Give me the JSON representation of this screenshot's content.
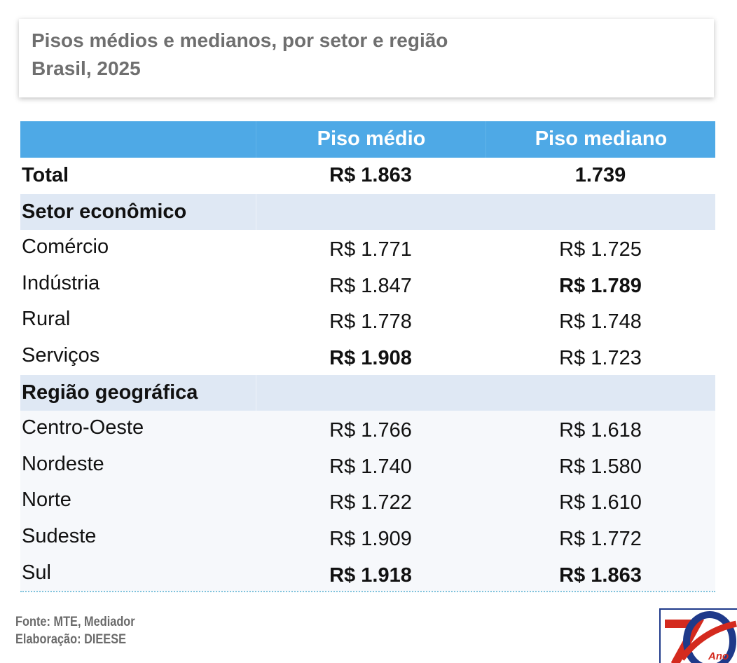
{
  "title": {
    "line1": "Pisos médios e medianos, por setor e região",
    "line2": "Brasil, 2025"
  },
  "chart_data": {
    "type": "table",
    "columns": [
      "",
      "Piso médio",
      "Piso mediano"
    ],
    "rows": [
      {
        "kind": "total",
        "label": "Total",
        "medio": "R$ 1.863",
        "mediano": "1.739",
        "medio_bold": true,
        "mediano_bold": true
      },
      {
        "kind": "section",
        "label": "Setor econômico",
        "medio": "",
        "mediano": ""
      },
      {
        "kind": "data",
        "label": "Comércio",
        "medio": "R$ 1.771",
        "mediano": "R$ 1.725",
        "medio_bold": false,
        "mediano_bold": false
      },
      {
        "kind": "data",
        "label": "Indústria",
        "medio": "R$ 1.847",
        "mediano": "R$ 1.789",
        "medio_bold": false,
        "mediano_bold": true
      },
      {
        "kind": "data",
        "label": "Rural",
        "medio": "R$ 1.778",
        "mediano": "R$ 1.748",
        "medio_bold": false,
        "mediano_bold": false
      },
      {
        "kind": "data",
        "label": "Serviços",
        "medio": "R$ 1.908",
        "mediano": "R$ 1.723",
        "medio_bold": true,
        "mediano_bold": false
      },
      {
        "kind": "section",
        "label": "Região geográfica",
        "medio": "",
        "mediano": ""
      },
      {
        "kind": "data",
        "label": "Centro-Oeste",
        "medio": "R$ 1.766",
        "mediano": "R$ 1.618",
        "medio_bold": false,
        "mediano_bold": false
      },
      {
        "kind": "data",
        "label": "Nordeste",
        "medio": "R$ 1.740",
        "mediano": "R$ 1.580",
        "medio_bold": false,
        "mediano_bold": false
      },
      {
        "kind": "data",
        "label": "Norte",
        "medio": "R$ 1.722",
        "mediano": "R$ 1.610",
        "medio_bold": false,
        "mediano_bold": false
      },
      {
        "kind": "data",
        "label": "Sudeste",
        "medio": "R$ 1.909",
        "mediano": "R$ 1.772",
        "medio_bold": false,
        "mediano_bold": false
      },
      {
        "kind": "data",
        "label": "Sul",
        "medio": "R$ 1.918",
        "mediano": "R$ 1.863",
        "medio_bold": true,
        "mediano_bold": true
      }
    ]
  },
  "footer": {
    "source": "Fonte: MTE, Mediador",
    "elaboration": "Elaboração: DIEESE"
  },
  "logo": {
    "text": "Ano",
    "colors": {
      "red": "#d42a1e",
      "blue": "#1f3a8a"
    }
  },
  "colors": {
    "header_bg": "#4ea9e6",
    "section_bg": "#dfe8f4",
    "title_text": "#6f6f6f"
  }
}
